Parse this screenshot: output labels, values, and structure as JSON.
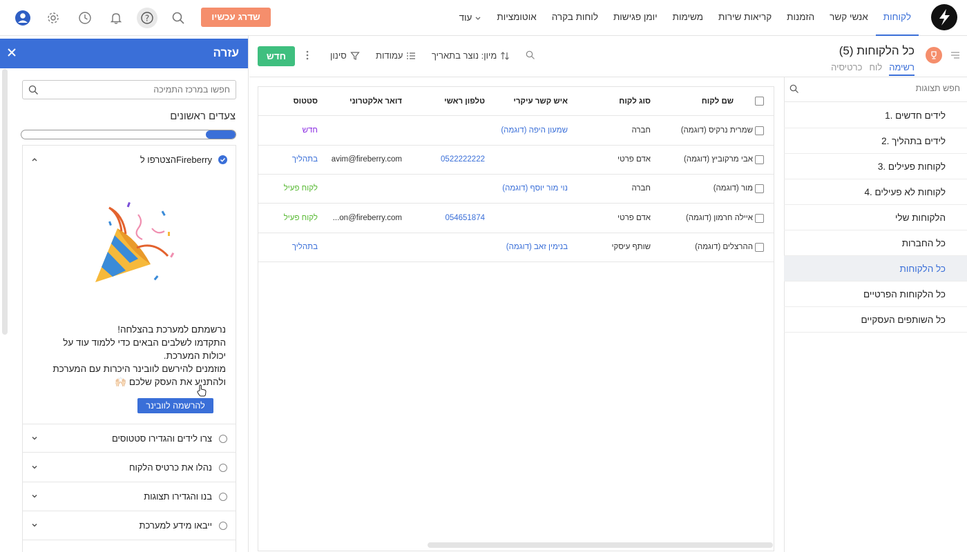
{
  "topnav": {
    "items": [
      {
        "label": "לקוחות",
        "active": true
      },
      {
        "label": "אנשי קשר"
      },
      {
        "label": "הזמנות"
      },
      {
        "label": "קריאות שירות"
      },
      {
        "label": "משימות"
      },
      {
        "label": "יומן פגישות"
      },
      {
        "label": "לוחות בקרה"
      },
      {
        "label": "אוטומציות"
      }
    ],
    "more_label": "עוד",
    "upgrade_label": "שדרג עכשיו",
    "icons": [
      "search-icon",
      "help-icon",
      "bell-icon",
      "clock-icon",
      "gear-icon",
      "user-icon"
    ]
  },
  "help": {
    "title": "עזרה",
    "search_placeholder": "חפשו במרכז התמיכה",
    "section_title": "צעדים ראשונים",
    "progress": 0.14,
    "open_step": {
      "label": "הצטרפו לFireberry",
      "message_1": "נרשמתם למערכת בהצלחה!",
      "message_2": "התקדמו לשלבים הבאים כדי ללמוד עוד על יכולות המערכת.",
      "message_3": "מוזמנים להירשם לוובינר היכרות עם המערכת ולהתניע את העסק שלכם 🙌🏻",
      "button_label": "להרשמה לוובינר"
    },
    "steps": [
      {
        "label": "צרו לידים והגדירו סטטוסים"
      },
      {
        "label": "נהלו את כרטיס הלקוח"
      },
      {
        "label": "בנו והגדירו תצוגות"
      },
      {
        "label": "ייבאו מידע למערכת"
      }
    ]
  },
  "view": {
    "title": "כל הלקוחות (5)",
    "tabs": [
      "רשימה",
      "לוח",
      "כרטיסיה"
    ],
    "new_label": "חדש",
    "filter_label": "סינון",
    "columns_label": "עמודות",
    "sort_label": "מיון: נוצר בתאריך"
  },
  "views_list": {
    "search_placeholder": "חפש תצוגות",
    "items": [
      {
        "label": "1. לידים חדשים"
      },
      {
        "label": "2. לידים בתהליך"
      },
      {
        "label": "3. לקוחות פעילים"
      },
      {
        "label": "4. לקוחות לא פעילים"
      },
      {
        "label": "הלקוחות שלי"
      },
      {
        "label": "כל החברות"
      },
      {
        "label": "כל הלקוחות",
        "active": true
      },
      {
        "label": "כל הלקוחות הפרטיים"
      },
      {
        "label": "כל השותפים העסקיים"
      }
    ]
  },
  "table": {
    "headers": {
      "name": "שם לקוח",
      "type": "סוג לקוח",
      "contact": "איש קשר עיקרי",
      "phone": "טלפון ראשי",
      "email": "דואר אלקטרוני",
      "status": "סטטוס"
    },
    "rows": [
      {
        "name": "שמרית נרקיס (דוגמה)",
        "type": "חברה",
        "contact": "שמעון היפה (דוגמה)",
        "phone": "",
        "email": "",
        "status": "חדש",
        "status_kind": "new"
      },
      {
        "name": "אבי מרקוביץ (דוגמה)",
        "type": "אדם פרטי",
        "contact": "",
        "phone": "0522222222",
        "email": "avim@fireberry.com",
        "status": "בתהליך",
        "status_kind": "progress"
      },
      {
        "name": "מור (דוגמה)",
        "type": "חברה",
        "contact": "נוי מור יוסף (דוגמה)",
        "phone": "",
        "email": "",
        "status": "לקוח פעיל",
        "status_kind": "active"
      },
      {
        "name": "איילה חרמון (דוגמה)",
        "type": "אדם פרטי",
        "contact": "",
        "phone": "054651874",
        "email": "...on@fireberry.com",
        "status": "לקוח פעיל",
        "status_kind": "active"
      },
      {
        "name": "ההרצלים (דוגמה)",
        "type": "שותף עיסקי",
        "contact": "בנימין זאב (דוגמה)",
        "phone": "",
        "email": "",
        "status": "בתהליך",
        "status_kind": "progress"
      }
    ]
  },
  "colors": {
    "accent": "#3a6fd8",
    "upgrade": "#f58e6c",
    "new_button": "#3fbf7f",
    "status_new": "#8a2be2",
    "status_active": "#55b830"
  }
}
